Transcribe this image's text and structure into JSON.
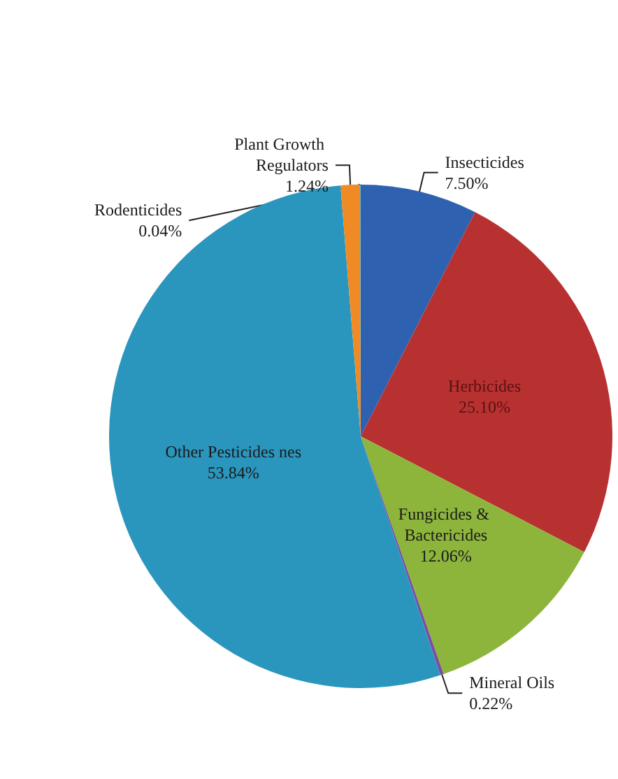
{
  "chart_data": {
    "type": "pie",
    "categories": [
      "Insecticides",
      "Herbicides",
      "Fungicides & Bactericides",
      "Mineral Oils",
      "Other Pesticides nes",
      "Plant Growth Regulators",
      "Rodenticides"
    ],
    "values": [
      7.5,
      25.1,
      12.06,
      0.22,
      53.84,
      1.24,
      0.04
    ],
    "value_labels": [
      "7.50%",
      "25.10%",
      "12.06%",
      "0.22%",
      "53.84%",
      "1.24%",
      "0.04%"
    ],
    "colors": [
      "#2e62b0",
      "#b83131",
      "#8db53c",
      "#7a4ea0",
      "#2b96bd",
      "#f08a24",
      "#4aacc6"
    ],
    "legend": false
  }
}
